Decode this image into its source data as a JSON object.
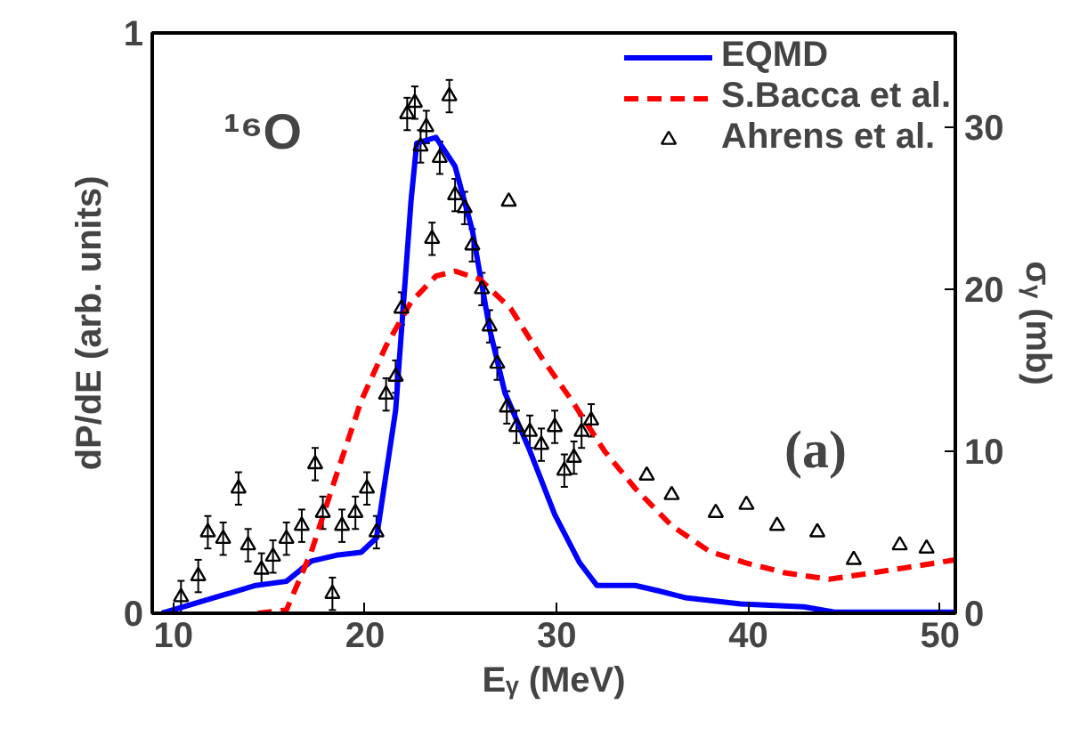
{
  "chart_data": {
    "type": "line",
    "xlabel": "Eᵧ (MeV)",
    "ylabel": "dP/dE (arb. units)",
    "y2label": "σᵧ (mb)",
    "annotations": [
      "¹⁶O",
      "(a)"
    ],
    "xlim": [
      8.9,
      50.8
    ],
    "xticks": [
      10,
      20,
      30,
      40,
      50
    ],
    "ylim": [
      0,
      1
    ],
    "yticks": [
      0,
      1
    ],
    "y2lim": [
      0,
      35.8
    ],
    "y2ticks": [
      0,
      10,
      20,
      30
    ],
    "grid": false,
    "legend": "top right",
    "series": [
      {
        "name": "EQMD",
        "color": "#0000ff",
        "line_style": "solid",
        "x": [
          9.4,
          14.3,
          15.9,
          17.2,
          18.5,
          19.8,
          20.6,
          21.6,
          22.4,
          22.7,
          23.7,
          24.7,
          25.6,
          26.5,
          27.3,
          28.6,
          29.9,
          31.2,
          32.1,
          34.1,
          35.4,
          36.7,
          39.6,
          42.9,
          44.5,
          50.8
        ],
        "values": [
          0,
          0.048,
          0.055,
          0.09,
          0.1,
          0.105,
          0.13,
          0.35,
          0.71,
          0.81,
          0.82,
          0.77,
          0.66,
          0.49,
          0.38,
          0.28,
          0.17,
          0.087,
          0.048,
          0.048,
          0.038,
          0.027,
          0.016,
          0.011,
          0.002,
          0.002
        ]
      },
      {
        "name": "S.Bacca et al.",
        "type": "line",
        "axis": "y2",
        "color": "#ff0000",
        "line_style": "dashed",
        "x": [
          14.4,
          15.9,
          17.2,
          18.5,
          19.8,
          21.1,
          22.4,
          23.7,
          24.7,
          26.0,
          27.6,
          29.2,
          30.8,
          32.5,
          34.1,
          36.0,
          38.0,
          39.9,
          41.9,
          44.2,
          46.5,
          48.7,
          50.8
        ],
        "values": [
          0,
          0.2,
          3.8,
          8.5,
          13.1,
          16.5,
          19.2,
          20.8,
          21.1,
          20.6,
          18.8,
          15.8,
          13.1,
          10.0,
          7.7,
          5.4,
          3.8,
          3.1,
          2.5,
          2.1,
          2.5,
          2.9,
          3.3
        ]
      },
      {
        "name": "Ahrens et al.",
        "type": "scatter",
        "axis": "y2",
        "color": "#000000",
        "marker": "triangle",
        "x": [
          10.4,
          11.3,
          11.8,
          12.6,
          13.4,
          13.9,
          14.6,
          15.2,
          15.9,
          16.7,
          17.4,
          17.8,
          18.3,
          18.8,
          19.5,
          20.1,
          20.6,
          21.1,
          21.6,
          21.9,
          22.2,
          22.6,
          22.9,
          23.2,
          23.5,
          23.9,
          24.4,
          24.7,
          25.2,
          25.6,
          26.1,
          26.5,
          26.9,
          27.4,
          27.5,
          27.9,
          28.6,
          29.2,
          29.9,
          30.4,
          30.9,
          31.3,
          31.8,
          34.7,
          36.0,
          38.3,
          39.9,
          41.5,
          43.6,
          45.5,
          47.9,
          49.3
        ],
        "values": [
          1.0,
          2.3,
          5.0,
          4.6,
          7.7,
          4.2,
          2.7,
          3.5,
          4.6,
          5.4,
          9.2,
          6.2,
          1.2,
          5.4,
          6.2,
          7.7,
          5.0,
          13.5,
          14.6,
          18.8,
          30.8,
          31.5,
          28.8,
          30.0,
          23.1,
          28.1,
          31.9,
          25.8,
          25.0,
          22.7,
          20.0,
          17.7,
          15.4,
          12.7,
          25.4,
          11.5,
          11.2,
          10.4,
          11.5,
          8.8,
          9.6,
          11.2,
          11.9,
          8.5,
          7.3,
          6.2,
          6.7,
          5.4,
          5.0,
          3.3,
          4.2,
          4.0
        ],
        "errors": [
          1,
          1,
          1,
          1,
          1,
          1,
          1,
          1,
          1,
          1,
          1,
          1,
          1,
          1,
          1,
          1,
          1,
          1,
          1,
          1,
          1,
          1,
          1,
          1,
          1,
          1,
          1,
          1,
          1,
          1,
          1,
          1,
          1,
          1,
          null,
          1,
          1,
          1,
          1,
          1,
          1,
          1,
          1,
          null,
          null,
          null,
          null,
          null,
          null,
          null,
          null,
          null
        ]
      }
    ]
  }
}
